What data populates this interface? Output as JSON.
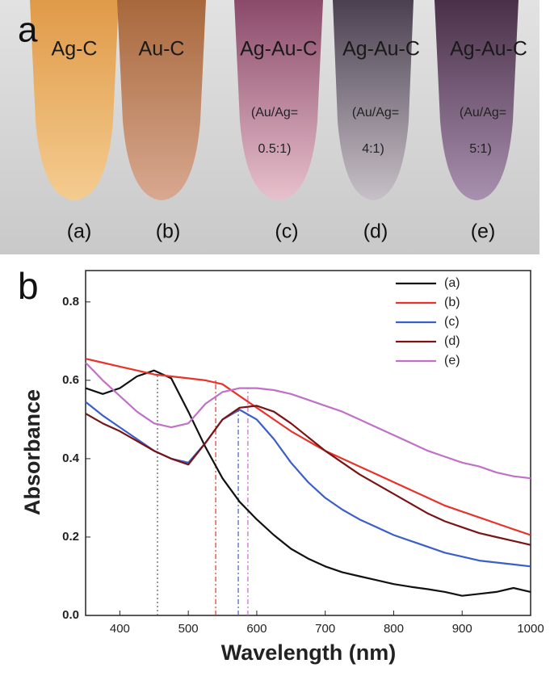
{
  "photo": {
    "label": "a",
    "tubes": [
      {
        "name": "Ag-C",
        "tag": "(a)"
      },
      {
        "name": "Au-C",
        "tag": "(b)"
      },
      {
        "name": "Ag-Au-C",
        "ratio_prefix": "(Au/Ag=",
        "ratio": "0.5:1)",
        "tag": "(c)"
      },
      {
        "name": "Ag-Au-C",
        "ratio_prefix": "(Au/Ag=",
        "ratio": "4:1)",
        "tag": "(d)"
      },
      {
        "name": "Ag-Au-C",
        "ratio_prefix": "(Au/Ag=",
        "ratio": "5:1)",
        "tag": "(e)"
      }
    ]
  },
  "chart_data": {
    "type": "line",
    "panel_label": "b",
    "x_label": "Wavelength (nm)",
    "y_label": "Absorbance",
    "xlim": [
      350,
      1000
    ],
    "ylim": [
      0,
      0.88
    ],
    "xticks": [
      400,
      500,
      600,
      700,
      800,
      900,
      1000
    ],
    "yticks": [
      {
        "value": 0,
        "label": "0.0"
      },
      0.2,
      0.4,
      0.6,
      0.8
    ],
    "legend": "top-right",
    "x": [
      350,
      375,
      400,
      425,
      450,
      475,
      500,
      525,
      550,
      575,
      600,
      625,
      650,
      675,
      700,
      725,
      750,
      775,
      800,
      825,
      850,
      875,
      900,
      925,
      950,
      975,
      1000
    ],
    "series": [
      {
        "name": "(a)",
        "color": "#111111",
        "values": [
          0.58,
          0.565,
          0.58,
          0.61,
          0.625,
          0.605,
          0.52,
          0.43,
          0.35,
          0.29,
          0.245,
          0.205,
          0.17,
          0.145,
          0.125,
          0.11,
          0.1,
          0.09,
          0.08,
          0.073,
          0.067,
          0.06,
          0.05,
          0.055,
          0.06,
          0.07,
          0.06
        ]
      },
      {
        "name": "(b)",
        "color": "#e8322a",
        "values": [
          0.655,
          0.645,
          0.635,
          0.625,
          0.615,
          0.61,
          0.605,
          0.6,
          0.59,
          0.56,
          0.53,
          0.5,
          0.47,
          0.445,
          0.42,
          0.4,
          0.38,
          0.36,
          0.34,
          0.32,
          0.3,
          0.28,
          0.265,
          0.25,
          0.235,
          0.22,
          0.205
        ]
      },
      {
        "name": "(c)",
        "color": "#3a5fc8",
        "values": [
          0.545,
          0.51,
          0.48,
          0.45,
          0.42,
          0.4,
          0.39,
          0.44,
          0.5,
          0.525,
          0.5,
          0.45,
          0.39,
          0.34,
          0.3,
          0.27,
          0.245,
          0.225,
          0.205,
          0.19,
          0.175,
          0.16,
          0.15,
          0.14,
          0.135,
          0.13,
          0.125
        ]
      },
      {
        "name": "(d)",
        "color": "#7a1414",
        "values": [
          0.515,
          0.49,
          0.47,
          0.445,
          0.42,
          0.4,
          0.385,
          0.44,
          0.5,
          0.53,
          0.535,
          0.52,
          0.49,
          0.455,
          0.42,
          0.39,
          0.36,
          0.335,
          0.31,
          0.285,
          0.26,
          0.24,
          0.225,
          0.21,
          0.2,
          0.19,
          0.18
        ]
      },
      {
        "name": "(e)",
        "color": "#c070c8",
        "values": [
          0.645,
          0.6,
          0.56,
          0.52,
          0.49,
          0.48,
          0.49,
          0.54,
          0.57,
          0.58,
          0.58,
          0.575,
          0.565,
          0.55,
          0.535,
          0.52,
          0.5,
          0.48,
          0.46,
          0.44,
          0.42,
          0.405,
          0.39,
          0.38,
          0.365,
          0.355,
          0.35
        ]
      }
    ],
    "peak_lines": [
      {
        "x": 455,
        "y": 0.625,
        "color": "#555555"
      },
      {
        "x": 540,
        "y": 0.6,
        "color": "#e8322a"
      },
      {
        "x": 573,
        "y": 0.525,
        "color": "#3a5fc8"
      },
      {
        "x": 587,
        "y": 0.58,
        "color": "#c070c8"
      }
    ]
  }
}
